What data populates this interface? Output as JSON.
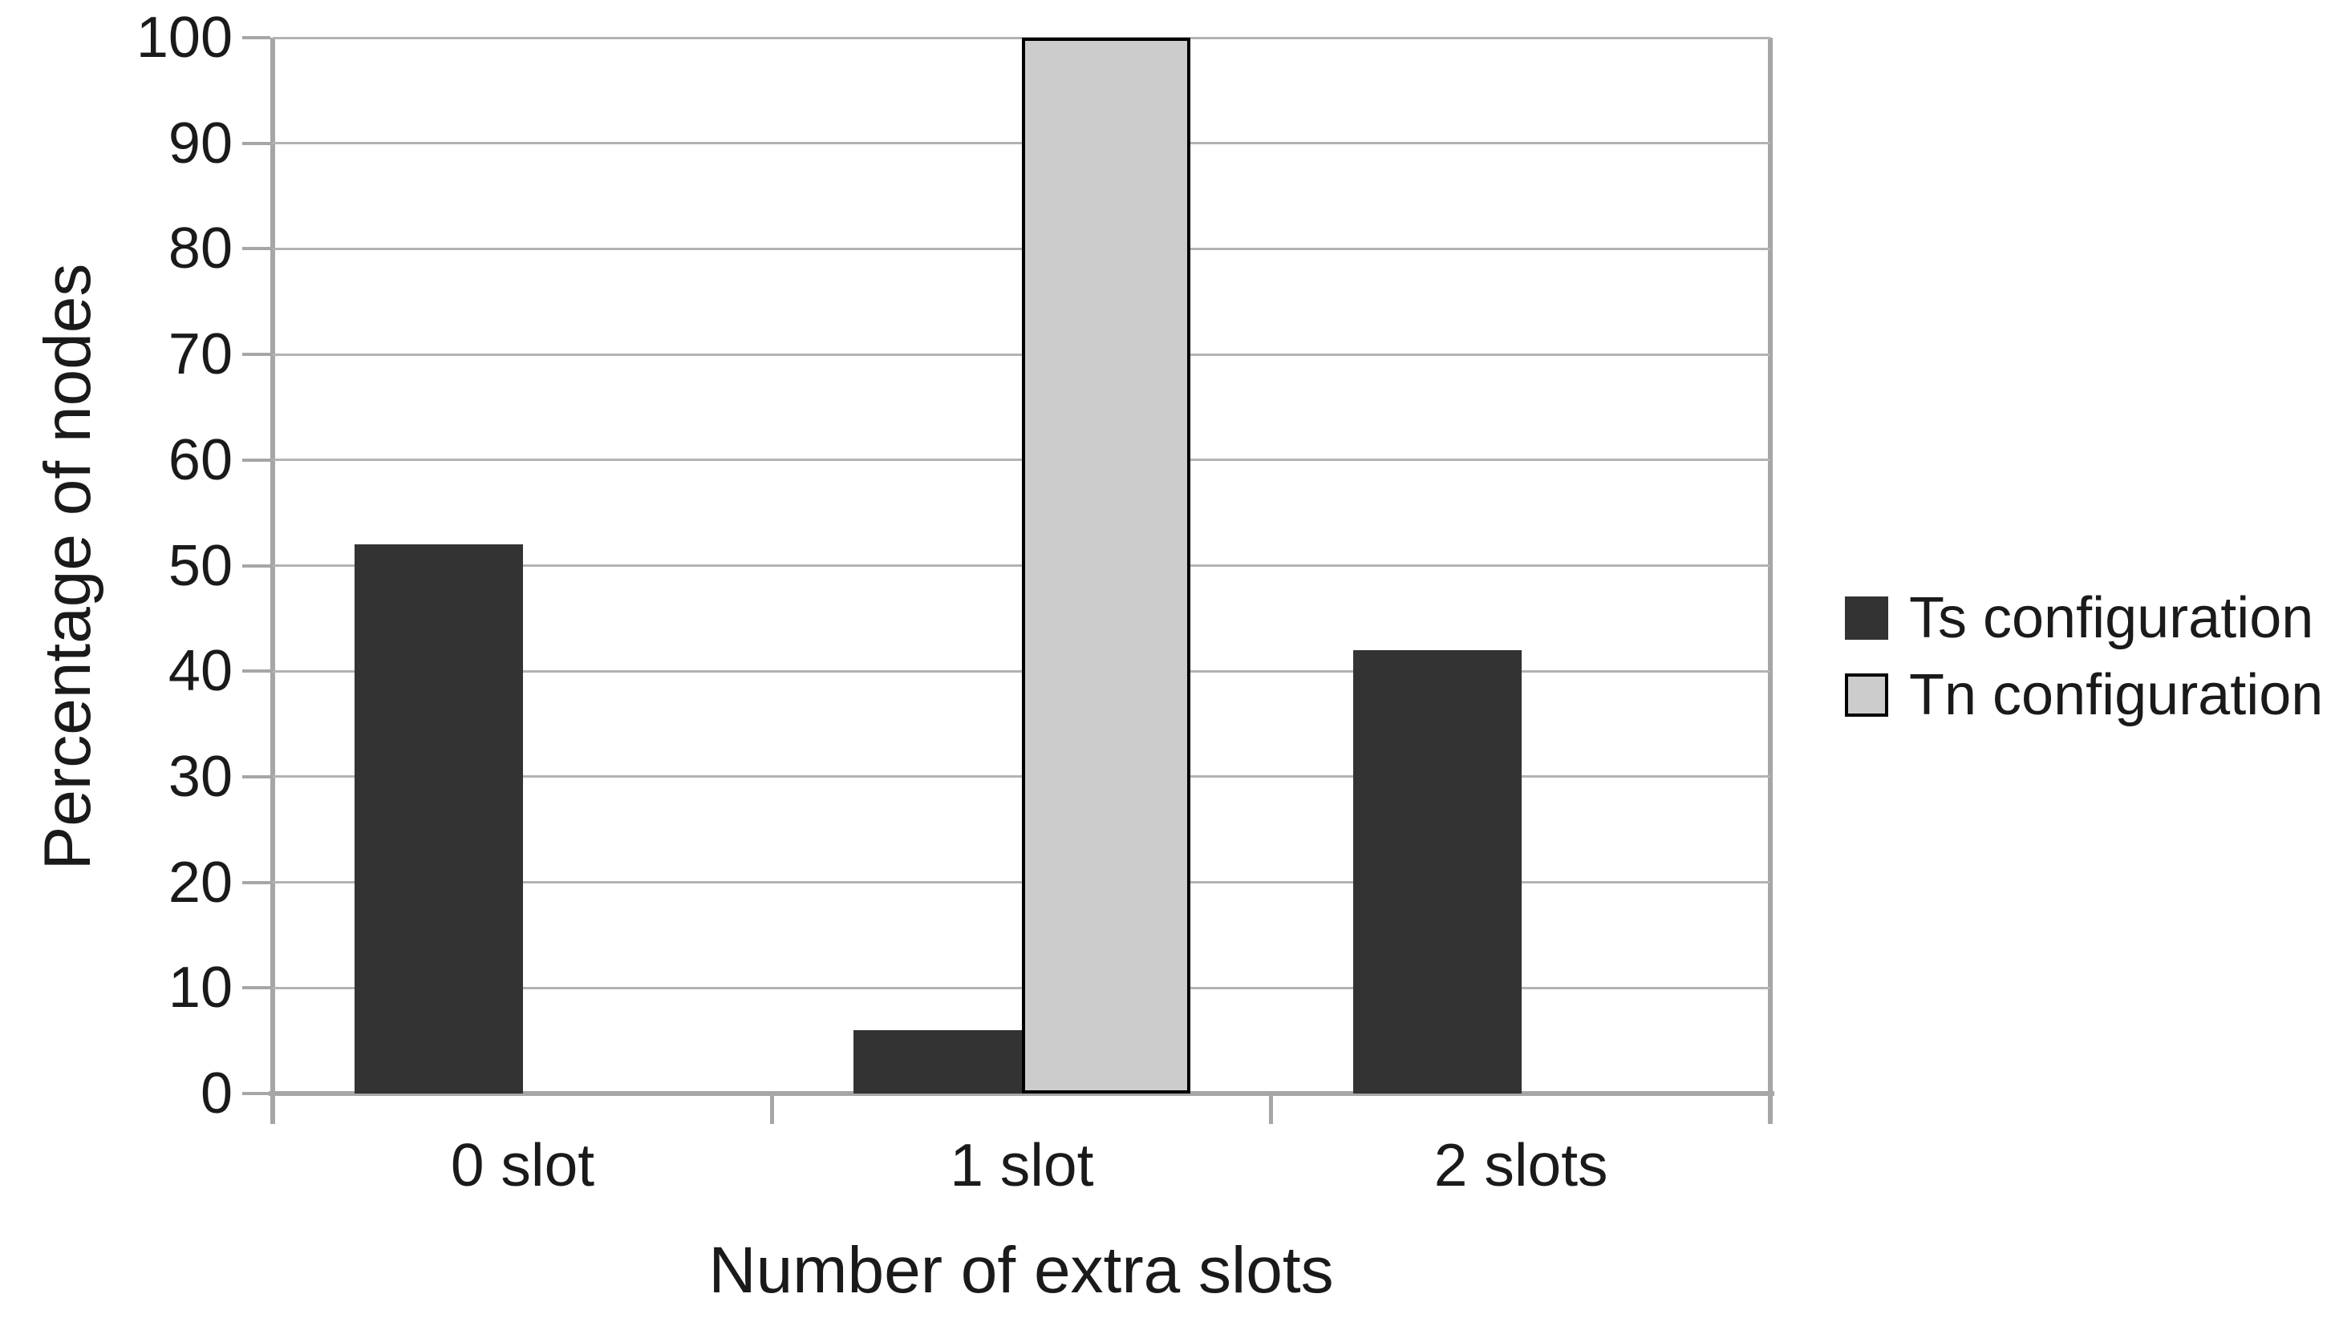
{
  "chart_data": {
    "type": "bar",
    "title": "",
    "xlabel": "Number of extra slots",
    "ylabel": "Percentage of nodes",
    "categories": [
      "0 slot",
      "1 slot",
      "2 slots"
    ],
    "series": [
      {
        "name": "Ts configuration",
        "color": "#333333",
        "border_color": "#333333",
        "values": [
          52,
          6,
          42
        ]
      },
      {
        "name": "Tn configuration",
        "color": "#cccccc",
        "border_color": "#000000",
        "values": [
          0,
          100,
          0
        ]
      }
    ],
    "ylim": [
      0,
      100
    ],
    "ytick_step": 10,
    "yticks": [
      0,
      10,
      20,
      30,
      40,
      50,
      60,
      70,
      80,
      90,
      100
    ],
    "grid": true,
    "gridline_color": "#b3b3b3",
    "axis_color": "#a6a6a6",
    "legend_position": "right"
  }
}
